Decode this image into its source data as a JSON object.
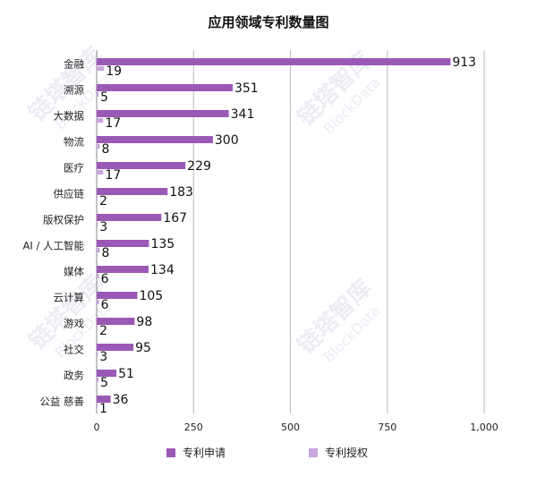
{
  "chart_data": {
    "type": "bar",
    "orientation": "horizontal",
    "title": "应用领域专利数量图",
    "categories": [
      "金融",
      "溯源",
      "大数据",
      "物流",
      "医疗",
      "供应链",
      "版权保护",
      "AI / 人工智能",
      "媒体",
      "云计算",
      "游戏",
      "社交",
      "政务",
      "公益 慈善"
    ],
    "series": [
      {
        "name": "专利申请",
        "color": "#9b59b6",
        "values": [
          913,
          351,
          341,
          300,
          229,
          183,
          167,
          135,
          134,
          105,
          98,
          95,
          51,
          36
        ]
      },
      {
        "name": "专利授权",
        "color": "#c9a6dc",
        "values": [
          19,
          5,
          17,
          8,
          17,
          2,
          3,
          8,
          6,
          6,
          2,
          3,
          5,
          1
        ]
      }
    ],
    "xlim": [
      0,
      1000
    ],
    "xticks": [
      0,
      250,
      500,
      750,
      1000
    ],
    "xtick_labels": [
      "0",
      "250",
      "500",
      "750",
      "1,000"
    ],
    "xlabel": "",
    "ylabel": "",
    "grid": "vertical",
    "legend_position": "bottom"
  },
  "watermark": {
    "text_cn": "链塔智库",
    "text_en": "BlockData"
  }
}
